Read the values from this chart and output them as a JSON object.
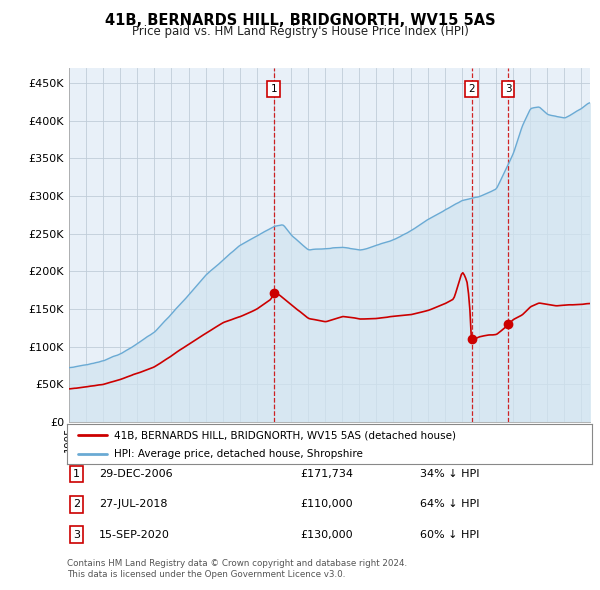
{
  "title": "41B, BERNARDS HILL, BRIDGNORTH, WV15 5AS",
  "subtitle": "Price paid vs. HM Land Registry's House Price Index (HPI)",
  "background_color": "#ffffff",
  "plot_bg_color": "#e8f0f8",
  "grid_color": "#c0cdd8",
  "hpi_color": "#6aaad4",
  "hpi_fill_color": "#d0e4f0",
  "price_color": "#cc0000",
  "vline_color": "#cc0000",
  "ylim": [
    0,
    470000
  ],
  "yticks": [
    0,
    50000,
    100000,
    150000,
    200000,
    250000,
    300000,
    350000,
    400000,
    450000
  ],
  "ytick_labels": [
    "£0",
    "£50K",
    "£100K",
    "£150K",
    "£200K",
    "£250K",
    "£300K",
    "£350K",
    "£400K",
    "£450K"
  ],
  "xlim_start": 1995.0,
  "xlim_end": 2025.5,
  "transactions": [
    {
      "label": "1",
      "date": 2006.99,
      "price": 171734
    },
    {
      "label": "2",
      "date": 2018.58,
      "price": 110000
    },
    {
      "label": "3",
      "date": 2020.71,
      "price": 130000
    }
  ],
  "legend_entry1": "41B, BERNARDS HILL, BRIDGNORTH, WV15 5AS (detached house)",
  "legend_entry2": "HPI: Average price, detached house, Shropshire",
  "table_rows": [
    {
      "num": "1",
      "date": "29-DEC-2006",
      "price": "£171,734",
      "pct": "34% ↓ HPI"
    },
    {
      "num": "2",
      "date": "27-JUL-2018",
      "price": "£110,000",
      "pct": "64% ↓ HPI"
    },
    {
      "num": "3",
      "date": "15-SEP-2020",
      "price": "£130,000",
      "pct": "60% ↓ HPI"
    }
  ],
  "footnote1": "Contains HM Land Registry data © Crown copyright and database right 2024.",
  "footnote2": "This data is licensed under the Open Government Licence v3.0."
}
